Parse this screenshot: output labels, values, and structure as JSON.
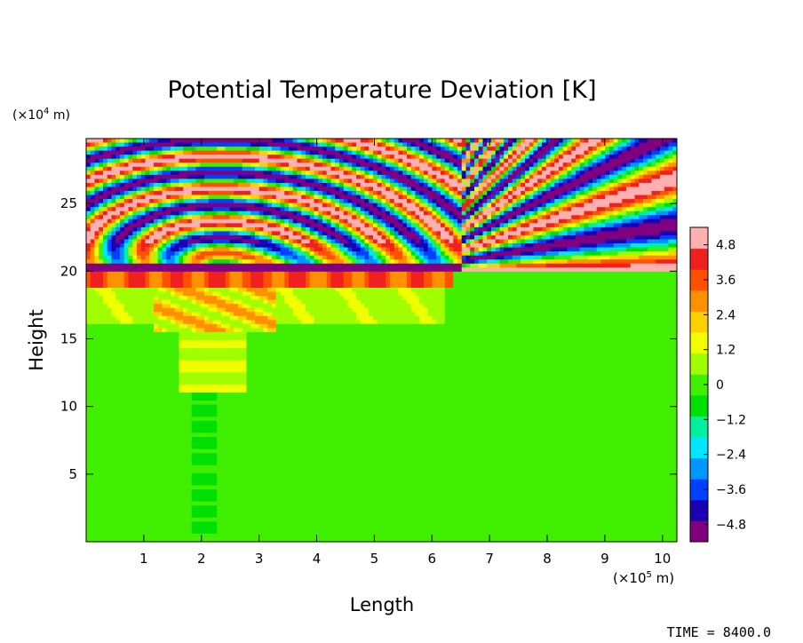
{
  "chart_data": {
    "type": "heatmap",
    "title": "Potential Temperature Deviation [K]",
    "xlabel": "Length",
    "ylabel": "Height",
    "x_unit_prefix": "(×10",
    "x_unit_exp": "5",
    "x_unit_suffix": " m)",
    "y_unit_prefix": "(×10",
    "y_unit_exp": "4",
    "y_unit_suffix": " m)",
    "xlim": [
      0,
      10.25
    ],
    "ylim": [
      0,
      29.8
    ],
    "x_ticks": [
      "1",
      "2",
      "3",
      "4",
      "5",
      "6",
      "7",
      "8",
      "9",
      "10"
    ],
    "y_ticks": [
      "5",
      "10",
      "15",
      "20",
      "25"
    ],
    "colorbar": {
      "range": [
        -5.4,
        5.4
      ],
      "tick_values": [
        4.8,
        3.6,
        2.4,
        1.2,
        0,
        -1.2,
        -2.4,
        -3.6,
        -4.8
      ],
      "tick_labels": [
        "4.8",
        "3.6",
        "2.4",
        "1.2",
        "0",
        "−1.2",
        "−2.4",
        "−3.6",
        "−4.8"
      ],
      "colors": [
        "#800080",
        "#1a00b0",
        "#0040ff",
        "#0096ff",
        "#00e6ff",
        "#00f0a0",
        "#00e000",
        "#40f000",
        "#a0ff00",
        "#f0ff00",
        "#ffd000",
        "#ff9000",
        "#ff5000",
        "#f02020",
        "#ffb0b0"
      ]
    },
    "field_description_values": {
      "background_value": 0,
      "tropopause_height": 20,
      "wave_region_x": [
        0,
        10.25
      ],
      "wave_region_y": [
        20,
        29.8
      ]
    }
  },
  "footer": {
    "time_label": "TIME = 8400.0"
  }
}
